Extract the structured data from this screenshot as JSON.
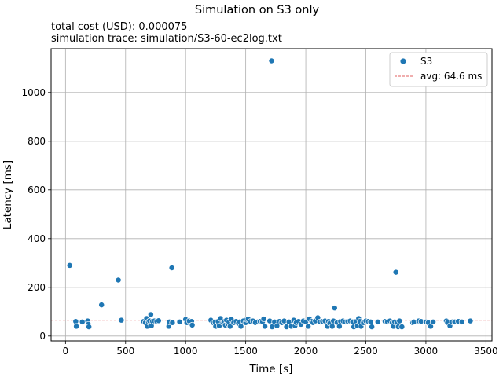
{
  "chart_data": {
    "type": "scatter",
    "title": "Simulation on S3 only",
    "subtitle_lines": [
      "total cost (USD):  0.000075",
      "simulation trace: simulation/S3-60-ec2log.txt"
    ],
    "xlabel": "Time [s]",
    "ylabel": "Latency [ms]",
    "xlim": [
      -120,
      3550
    ],
    "ylim": [
      -20,
      1180
    ],
    "xticks": [
      0,
      500,
      1000,
      1500,
      2000,
      2500,
      3000,
      3500
    ],
    "yticks": [
      0,
      200,
      400,
      600,
      800,
      1000
    ],
    "grid": true,
    "legend_position": "top-right",
    "colors": {
      "S3": "#1f77b4",
      "avg": "#d62728"
    },
    "series": [
      {
        "name": "S3",
        "points": [
          [
            35,
            290
          ],
          [
            85,
            60
          ],
          [
            90,
            40
          ],
          [
            140,
            58
          ],
          [
            185,
            62
          ],
          [
            190,
            48
          ],
          [
            195,
            38
          ],
          [
            300,
            128
          ],
          [
            440,
            230
          ],
          [
            465,
            65
          ],
          [
            650,
            60
          ],
          [
            665,
            55
          ],
          [
            675,
            72
          ],
          [
            680,
            40
          ],
          [
            690,
            58
          ],
          [
            700,
            62
          ],
          [
            710,
            88
          ],
          [
            715,
            42
          ],
          [
            725,
            60
          ],
          [
            740,
            62
          ],
          [
            760,
            60
          ],
          [
            775,
            63
          ],
          [
            860,
            40
          ],
          [
            865,
            58
          ],
          [
            885,
            280
          ],
          [
            890,
            55
          ],
          [
            950,
            58
          ],
          [
            1000,
            68
          ],
          [
            1010,
            55
          ],
          [
            1030,
            62
          ],
          [
            1050,
            60
          ],
          [
            1055,
            45
          ],
          [
            1210,
            65
          ],
          [
            1230,
            55
          ],
          [
            1245,
            58
          ],
          [
            1250,
            40
          ],
          [
            1270,
            60
          ],
          [
            1280,
            42
          ],
          [
            1290,
            72
          ],
          [
            1310,
            55
          ],
          [
            1320,
            60
          ],
          [
            1330,
            45
          ],
          [
            1340,
            65
          ],
          [
            1350,
            50
          ],
          [
            1360,
            58
          ],
          [
            1370,
            40
          ],
          [
            1380,
            68
          ],
          [
            1400,
            55
          ],
          [
            1420,
            60
          ],
          [
            1440,
            52
          ],
          [
            1450,
            58
          ],
          [
            1460,
            40
          ],
          [
            1480,
            62
          ],
          [
            1500,
            55
          ],
          [
            1510,
            68
          ],
          [
            1520,
            70
          ],
          [
            1540,
            60
          ],
          [
            1560,
            62
          ],
          [
            1580,
            55
          ],
          [
            1600,
            58
          ],
          [
            1620,
            60
          ],
          [
            1640,
            58
          ],
          [
            1650,
            70
          ],
          [
            1660,
            40
          ],
          [
            1700,
            62
          ],
          [
            1715,
            1130
          ],
          [
            1720,
            38
          ],
          [
            1740,
            58
          ],
          [
            1760,
            42
          ],
          [
            1780,
            60
          ],
          [
            1800,
            55
          ],
          [
            1820,
            62
          ],
          [
            1840,
            38
          ],
          [
            1860,
            58
          ],
          [
            1880,
            40
          ],
          [
            1900,
            65
          ],
          [
            1910,
            42
          ],
          [
            1920,
            55
          ],
          [
            1940,
            60
          ],
          [
            1960,
            48
          ],
          [
            1980,
            62
          ],
          [
            2000,
            58
          ],
          [
            2020,
            40
          ],
          [
            2030,
            70
          ],
          [
            2050,
            60
          ],
          [
            2060,
            55
          ],
          [
            2080,
            62
          ],
          [
            2100,
            75
          ],
          [
            2120,
            58
          ],
          [
            2140,
            60
          ],
          [
            2160,
            62
          ],
          [
            2180,
            40
          ],
          [
            2190,
            60
          ],
          [
            2200,
            52
          ],
          [
            2220,
            40
          ],
          [
            2230,
            62
          ],
          [
            2240,
            115
          ],
          [
            2260,
            55
          ],
          [
            2280,
            40
          ],
          [
            2290,
            60
          ],
          [
            2310,
            62
          ],
          [
            2330,
            58
          ],
          [
            2350,
            60
          ],
          [
            2370,
            62
          ],
          [
            2390,
            58
          ],
          [
            2400,
            38
          ],
          [
            2420,
            60
          ],
          [
            2430,
            42
          ],
          [
            2440,
            72
          ],
          [
            2450,
            60
          ],
          [
            2460,
            40
          ],
          [
            2480,
            55
          ],
          [
            2500,
            62
          ],
          [
            2520,
            60
          ],
          [
            2540,
            58
          ],
          [
            2550,
            38
          ],
          [
            2600,
            58
          ],
          [
            2660,
            60
          ],
          [
            2680,
            58
          ],
          [
            2700,
            62
          ],
          [
            2720,
            55
          ],
          [
            2730,
            40
          ],
          [
            2740,
            58
          ],
          [
            2750,
            262
          ],
          [
            2760,
            55
          ],
          [
            2770,
            38
          ],
          [
            2780,
            62
          ],
          [
            2800,
            38
          ],
          [
            2890,
            55
          ],
          [
            2900,
            58
          ],
          [
            2940,
            62
          ],
          [
            2960,
            60
          ],
          [
            3000,
            58
          ],
          [
            3020,
            55
          ],
          [
            3040,
            40
          ],
          [
            3060,
            58
          ],
          [
            3170,
            62
          ],
          [
            3180,
            55
          ],
          [
            3200,
            42
          ],
          [
            3220,
            58
          ],
          [
            3240,
            58
          ],
          [
            3270,
            60
          ],
          [
            3300,
            58
          ],
          [
            3370,
            62
          ]
        ]
      }
    ],
    "avg_line": {
      "label": "avg: 64.6 ms",
      "value": 64.6
    }
  }
}
